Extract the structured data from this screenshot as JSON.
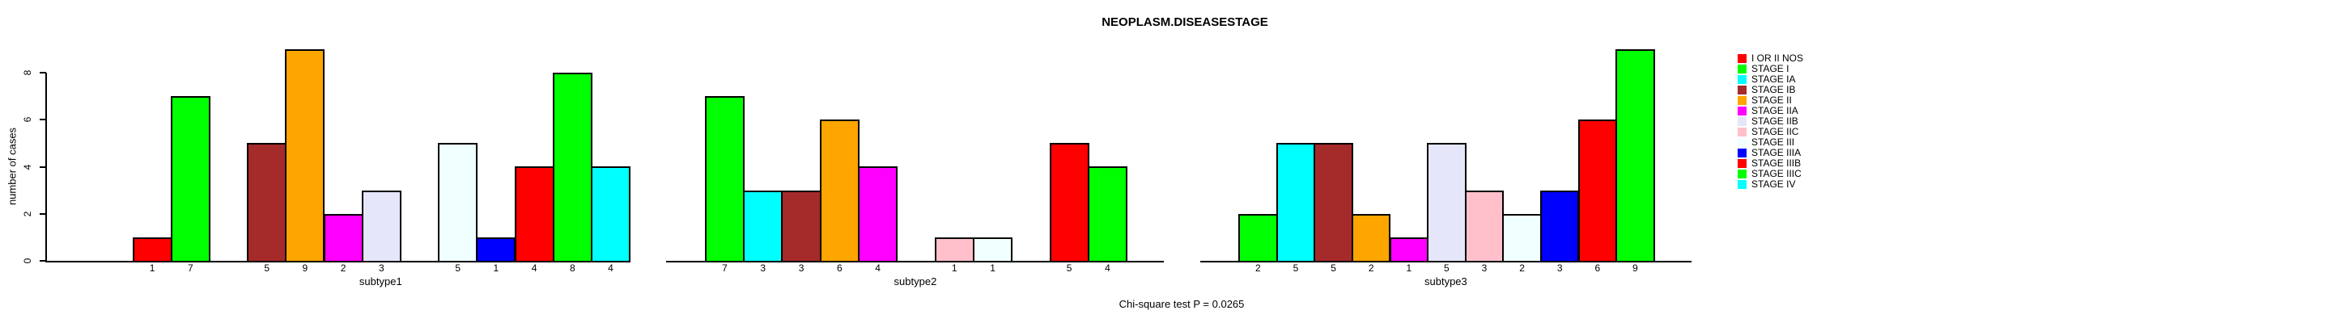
{
  "chart_data": {
    "type": "bar",
    "title": "NEOPLASM.DISEASESTAGE",
    "ylabel": "number of cases",
    "xlabel": "",
    "ylim": [
      0,
      9
    ],
    "yticks": [
      0,
      2,
      4,
      6,
      8
    ],
    "grid": false,
    "legend_position": "right",
    "bar_value_labels_shown": true,
    "zero_bars_hidden": true,
    "categories": [
      "I OR II NOS",
      "STAGE I",
      "STAGE IA",
      "STAGE IB",
      "STAGE II",
      "STAGE IIA",
      "STAGE IIB",
      "STAGE IIC",
      "STAGE III",
      "STAGE IIIA",
      "STAGE IIIB",
      "STAGE IIIC",
      "STAGE IV"
    ],
    "colors": [
      "#FF0000",
      "#00FF00",
      "#00FFFF",
      "#A52A2A",
      "#FFA500",
      "#FF00FF",
      "#E6E6FA",
      "#FFC0CB",
      "#F0FFFF",
      "#0000FF",
      "#FF0000",
      "#00FF00",
      "#00FFFF"
    ],
    "series": [
      {
        "name": "subtype1",
        "values": [
          1,
          7,
          0,
          5,
          9,
          2,
          3,
          0,
          5,
          1,
          4,
          8,
          4
        ]
      },
      {
        "name": "subtype2",
        "values": [
          0,
          7,
          3,
          3,
          6,
          4,
          0,
          1,
          1,
          0,
          5,
          4,
          0
        ]
      },
      {
        "name": "subtype3",
        "values": [
          0,
          2,
          5,
          5,
          2,
          1,
          5,
          3,
          2,
          3,
          6,
          9,
          0
        ]
      }
    ],
    "annotation": "Chi-square test P = 0.0265"
  }
}
